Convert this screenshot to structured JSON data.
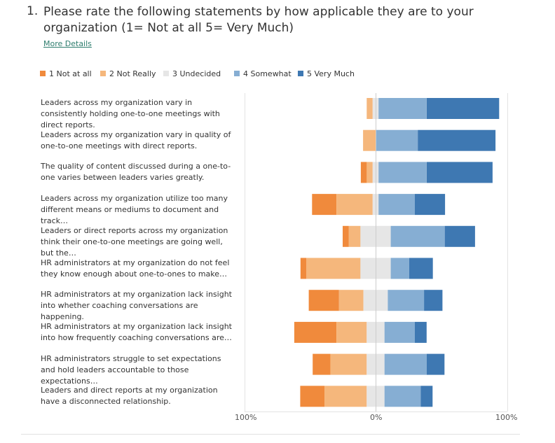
{
  "question": {
    "number": "1.",
    "text": "Please rate the following statements by how applicable they are to your organization (1= Not at all 5= Very Much)",
    "more_details": "More Details"
  },
  "colors": {
    "1": "#f08a3c",
    "2": "#f5b77c",
    "3": "#e6e6e6",
    "4": "#86aed3",
    "5": "#3e78b2",
    "zero_line": "#cccccc",
    "frame": "#e3e3e3"
  },
  "chart_data": {
    "type": "bar",
    "subtype": "diverging-stacked-horizontal",
    "legend_position": "top-left",
    "series": [
      {
        "name": "1 Not at all"
      },
      {
        "name": "2 Not Really"
      },
      {
        "name": "3 Undecided"
      },
      {
        "name": "4 Somewhat"
      },
      {
        "name": "5 Very Much"
      }
    ],
    "xlim": [
      -100,
      100
    ],
    "x_ticks": [
      "100%",
      "0%",
      "100%"
    ],
    "categories": [
      "Leaders across my organization vary in consistently holding one-to-one meetings with direct reports.",
      "Leaders across my organization vary in quality of one-to-one meetings with direct reports.",
      "The quality of content discussed during a one-to-one varies between leaders varies greatly.",
      "Leaders across my organization utilize too many different means or mediums to document and track…",
      "Leaders or direct reports across my organization think their one-to-one meetings are going well, but the…",
      "HR administrators at my organization do not feel they know enough about one-to-ones to make…",
      "HR administrators at my organization lack insight into whether coaching conversations are happening.",
      "HR administrators at my organization lack insight into how frequently coaching conversations are…",
      "HR administrators struggle to set expectations and hold leaders accountable to those expectations…",
      "Leaders and direct reports at my organization have a disconnected relationship."
    ],
    "values_percent": [
      [
        0,
        4.5,
        4.5,
        36.5,
        55
      ],
      [
        0,
        9.5,
        0,
        32,
        59
      ],
      [
        4.5,
        4.5,
        4.5,
        36.5,
        50
      ],
      [
        18.5,
        27.5,
        4.5,
        27.5,
        23
      ],
      [
        4.5,
        9,
        23,
        41,
        23
      ],
      [
        4.5,
        41,
        23,
        14,
        18
      ],
      [
        23,
        18.5,
        18.5,
        27.5,
        14
      ],
      [
        32,
        23,
        13.5,
        23,
        9
      ],
      [
        13.5,
        27.5,
        13.5,
        32,
        13.5
      ],
      [
        18.5,
        32,
        13.5,
        27.5,
        9
      ]
    ]
  }
}
